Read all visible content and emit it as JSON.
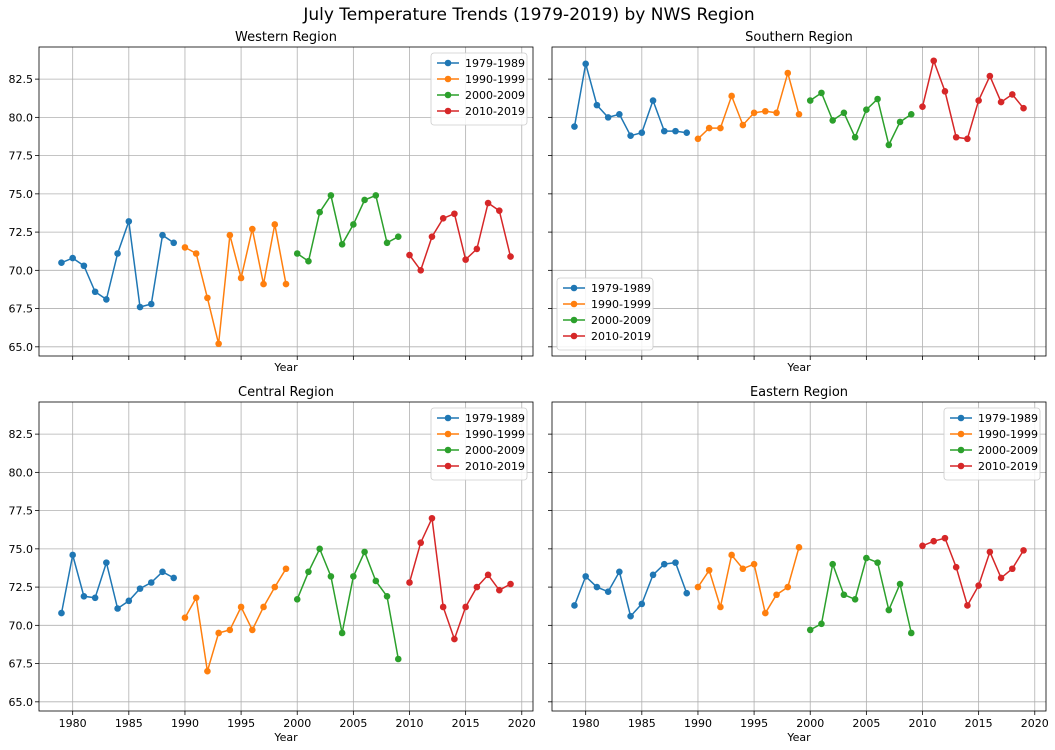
{
  "figure": {
    "title": "July Temperature Trends (1979-2019) by NWS Region"
  },
  "chart_data": [
    {
      "type": "line",
      "title": "Western Region",
      "xlabel": "Year",
      "ylabel": "",
      "xlim": [
        1977,
        2021
      ],
      "ylim": [
        64.4,
        84.6
      ],
      "xticks": [
        1980,
        1985,
        1990,
        1995,
        2000,
        2005,
        2010,
        2015,
        2020
      ],
      "yticks": [
        65.0,
        67.5,
        70.0,
        72.5,
        75.0,
        77.5,
        80.0,
        82.5
      ],
      "grid": true,
      "legend": "top-right",
      "show_xticklabels": false,
      "show_yticklabels": true,
      "series": [
        {
          "name": "1979-1989",
          "color": "#1f77b4",
          "x": [
            1979,
            1980,
            1981,
            1982,
            1983,
            1984,
            1985,
            1986,
            1987,
            1988,
            1989
          ],
          "values": [
            70.5,
            70.8,
            70.3,
            68.6,
            68.1,
            71.1,
            73.2,
            67.6,
            67.8,
            72.3,
            71.8
          ]
        },
        {
          "name": "1990-1999",
          "color": "#ff7f0e",
          "x": [
            1990,
            1991,
            1992,
            1993,
            1994,
            1995,
            1996,
            1997,
            1998,
            1999
          ],
          "values": [
            71.5,
            71.1,
            68.2,
            65.2,
            72.3,
            69.5,
            72.7,
            69.1,
            73.0,
            69.1
          ]
        },
        {
          "name": "2000-2009",
          "color": "#2ca02c",
          "x": [
            2000,
            2001,
            2002,
            2003,
            2004,
            2005,
            2006,
            2007,
            2008,
            2009
          ],
          "values": [
            71.1,
            70.6,
            73.8,
            74.9,
            71.7,
            73.0,
            74.6,
            74.9,
            71.8,
            72.2
          ]
        },
        {
          "name": "2010-2019",
          "color": "#d62728",
          "x": [
            2010,
            2011,
            2012,
            2013,
            2014,
            2015,
            2016,
            2017,
            2018,
            2019
          ],
          "values": [
            71.0,
            70.0,
            72.2,
            73.4,
            73.7,
            70.7,
            71.4,
            74.4,
            73.9,
            70.9
          ]
        }
      ]
    },
    {
      "type": "line",
      "title": "Southern Region",
      "xlabel": "Year",
      "ylabel": "",
      "xlim": [
        1977,
        2021
      ],
      "ylim": [
        64.4,
        84.6
      ],
      "xticks": [
        1980,
        1985,
        1990,
        1995,
        2000,
        2005,
        2010,
        2015,
        2020
      ],
      "yticks": [
        65.0,
        67.5,
        70.0,
        72.5,
        75.0,
        77.5,
        80.0,
        82.5
      ],
      "grid": true,
      "legend": "bottom-left",
      "show_xticklabels": false,
      "show_yticklabels": false,
      "series": [
        {
          "name": "1979-1989",
          "color": "#1f77b4",
          "x": [
            1979,
            1980,
            1981,
            1982,
            1983,
            1984,
            1985,
            1986,
            1987,
            1988,
            1989
          ],
          "values": [
            79.4,
            83.5,
            80.8,
            80.0,
            80.2,
            78.8,
            79.0,
            81.1,
            79.1,
            79.1,
            79.0
          ]
        },
        {
          "name": "1990-1999",
          "color": "#ff7f0e",
          "x": [
            1990,
            1991,
            1992,
            1993,
            1994,
            1995,
            1996,
            1997,
            1998,
            1999
          ],
          "values": [
            78.6,
            79.3,
            79.3,
            81.4,
            79.5,
            80.3,
            80.4,
            80.3,
            82.9,
            80.2
          ]
        },
        {
          "name": "2000-2009",
          "color": "#2ca02c",
          "x": [
            2000,
            2001,
            2002,
            2003,
            2004,
            2005,
            2006,
            2007,
            2008,
            2009
          ],
          "values": [
            81.1,
            81.6,
            79.8,
            80.3,
            78.7,
            80.5,
            81.2,
            78.2,
            79.7,
            80.2
          ]
        },
        {
          "name": "2010-2019",
          "color": "#d62728",
          "x": [
            2010,
            2011,
            2012,
            2013,
            2014,
            2015,
            2016,
            2017,
            2018,
            2019
          ],
          "values": [
            80.7,
            83.7,
            81.7,
            78.7,
            78.6,
            81.1,
            82.7,
            81.0,
            81.5,
            80.6
          ]
        }
      ]
    },
    {
      "type": "line",
      "title": "Central Region",
      "xlabel": "Year",
      "ylabel": "",
      "xlim": [
        1977,
        2021
      ],
      "ylim": [
        64.4,
        84.6
      ],
      "xticks": [
        1980,
        1985,
        1990,
        1995,
        2000,
        2005,
        2010,
        2015,
        2020
      ],
      "yticks": [
        65.0,
        67.5,
        70.0,
        72.5,
        75.0,
        77.5,
        80.0,
        82.5
      ],
      "grid": true,
      "legend": "top-right",
      "show_xticklabels": true,
      "show_yticklabels": true,
      "series": [
        {
          "name": "1979-1989",
          "color": "#1f77b4",
          "x": [
            1979,
            1980,
            1981,
            1982,
            1983,
            1984,
            1985,
            1986,
            1987,
            1988,
            1989
          ],
          "values": [
            70.8,
            74.6,
            71.9,
            71.8,
            74.1,
            71.1,
            71.6,
            72.4,
            72.8,
            73.5,
            73.1
          ]
        },
        {
          "name": "1990-1999",
          "color": "#ff7f0e",
          "x": [
            1990,
            1991,
            1992,
            1993,
            1994,
            1995,
            1996,
            1997,
            1998,
            1999
          ],
          "values": [
            70.5,
            71.8,
            67.0,
            69.5,
            69.7,
            71.2,
            69.7,
            71.2,
            72.5,
            73.7
          ]
        },
        {
          "name": "2000-2009",
          "color": "#2ca02c",
          "x": [
            2000,
            2001,
            2002,
            2003,
            2004,
            2005,
            2006,
            2007,
            2008,
            2009
          ],
          "values": [
            71.7,
            73.5,
            75.0,
            73.2,
            69.5,
            73.2,
            74.8,
            72.9,
            71.9,
            67.8
          ]
        },
        {
          "name": "2010-2019",
          "color": "#d62728",
          "x": [
            2010,
            2011,
            2012,
            2013,
            2014,
            2015,
            2016,
            2017,
            2018,
            2019
          ],
          "values": [
            72.8,
            75.4,
            77.0,
            71.2,
            69.1,
            71.2,
            72.5,
            73.3,
            72.3,
            72.7
          ]
        }
      ]
    },
    {
      "type": "line",
      "title": "Eastern Region",
      "xlabel": "Year",
      "ylabel": "",
      "xlim": [
        1977,
        2021
      ],
      "ylim": [
        64.4,
        84.6
      ],
      "xticks": [
        1980,
        1985,
        1990,
        1995,
        2000,
        2005,
        2010,
        2015,
        2020
      ],
      "yticks": [
        65.0,
        67.5,
        70.0,
        72.5,
        75.0,
        77.5,
        80.0,
        82.5
      ],
      "grid": true,
      "legend": "top-right",
      "show_xticklabels": true,
      "show_yticklabels": false,
      "series": [
        {
          "name": "1979-1989",
          "color": "#1f77b4",
          "x": [
            1979,
            1980,
            1981,
            1982,
            1983,
            1984,
            1985,
            1986,
            1987,
            1988,
            1989
          ],
          "values": [
            71.3,
            73.2,
            72.5,
            72.2,
            73.5,
            70.6,
            71.4,
            73.3,
            74.0,
            74.1,
            72.1
          ]
        },
        {
          "name": "1990-1999",
          "color": "#ff7f0e",
          "x": [
            1990,
            1991,
            1992,
            1993,
            1994,
            1995,
            1996,
            1997,
            1998,
            1999
          ],
          "values": [
            72.5,
            73.6,
            71.2,
            74.6,
            73.7,
            74.0,
            70.8,
            72.0,
            72.5,
            75.1
          ]
        },
        {
          "name": "2000-2009",
          "color": "#2ca02c",
          "x": [
            2000,
            2001,
            2002,
            2003,
            2004,
            2005,
            2006,
            2007,
            2008,
            2009
          ],
          "values": [
            69.7,
            70.1,
            74.0,
            72.0,
            71.7,
            74.4,
            74.1,
            71.0,
            72.7,
            69.5
          ]
        },
        {
          "name": "2010-2019",
          "color": "#d62728",
          "x": [
            2010,
            2011,
            2012,
            2013,
            2014,
            2015,
            2016,
            2017,
            2018,
            2019
          ],
          "values": [
            75.2,
            75.5,
            75.7,
            73.8,
            71.3,
            72.6,
            74.8,
            73.1,
            73.7,
            74.9
          ]
        }
      ]
    }
  ]
}
